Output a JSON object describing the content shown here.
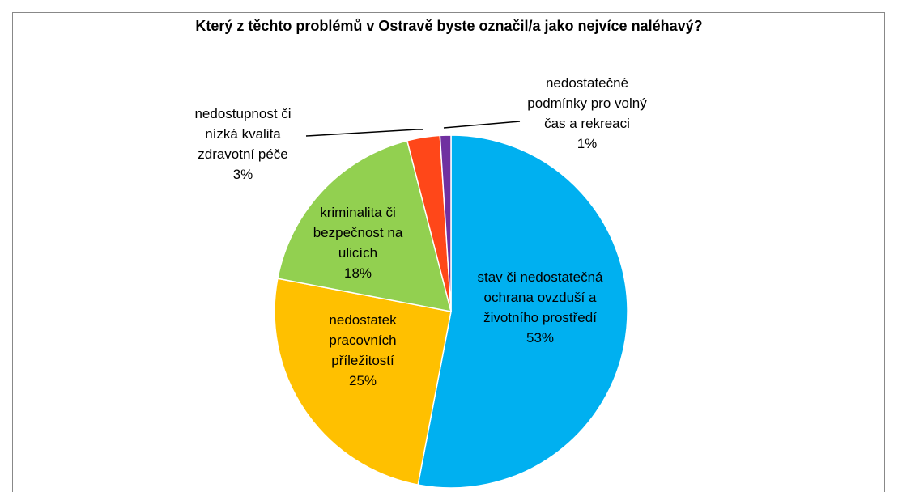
{
  "chart_data": {
    "type": "pie",
    "title": "Který z těchto problémů v Ostravě byste označil/a jako nejvíce naléhavý?",
    "categories": [
      "stav či nedostatečná ochrana ovzduší a životního prostředí",
      "nedostatek pracovních příležitostí",
      "kriminalita či bezpečnost na ulicích",
      "nedostupnost či nízká kvalita zdravotní péče",
      "nedostatečné podmínky pro volný čas a rekreaci"
    ],
    "values": [
      53,
      25,
      18,
      3,
      1
    ],
    "value_labels": [
      "53%",
      "25%",
      "18%",
      "3%",
      "1%"
    ],
    "colors": [
      "#00b0f0",
      "#ffc000",
      "#92d050",
      "#ff4719",
      "#7030a0"
    ]
  }
}
